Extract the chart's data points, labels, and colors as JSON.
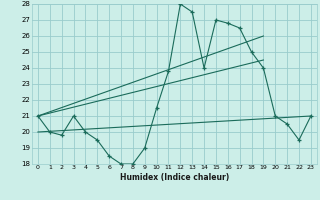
{
  "title": "",
  "xlabel": "Humidex (Indice chaleur)",
  "bg_color": "#cceee8",
  "grid_color": "#99cccc",
  "line_color": "#1a6b5a",
  "ylim": [
    18,
    28
  ],
  "xlim": [
    -0.5,
    23.5
  ],
  "yticks": [
    18,
    19,
    20,
    21,
    22,
    23,
    24,
    25,
    26,
    27,
    28
  ],
  "xticks": [
    0,
    1,
    2,
    3,
    4,
    5,
    6,
    7,
    8,
    9,
    10,
    11,
    12,
    13,
    14,
    15,
    16,
    17,
    18,
    19,
    20,
    21,
    22,
    23
  ],
  "main_x": [
    0,
    1,
    2,
    3,
    4,
    5,
    6,
    7,
    8,
    9,
    10,
    11,
    12,
    13,
    14,
    15,
    16,
    17,
    18,
    19,
    20,
    21,
    22,
    23
  ],
  "main_y": [
    21.0,
    20.0,
    19.8,
    21.0,
    20.0,
    19.5,
    18.5,
    18.0,
    18.0,
    19.0,
    21.5,
    23.8,
    28.0,
    27.5,
    24.0,
    27.0,
    26.8,
    26.5,
    25.0,
    24.0,
    21.0,
    20.5,
    19.5,
    21.0
  ],
  "trend1_x": [
    0,
    19
  ],
  "trend1_y": [
    21.0,
    26.0
  ],
  "trend2_x": [
    0,
    19
  ],
  "trend2_y": [
    21.0,
    24.5
  ],
  "trend3_x": [
    0,
    23
  ],
  "trend3_y": [
    20.0,
    21.0
  ]
}
